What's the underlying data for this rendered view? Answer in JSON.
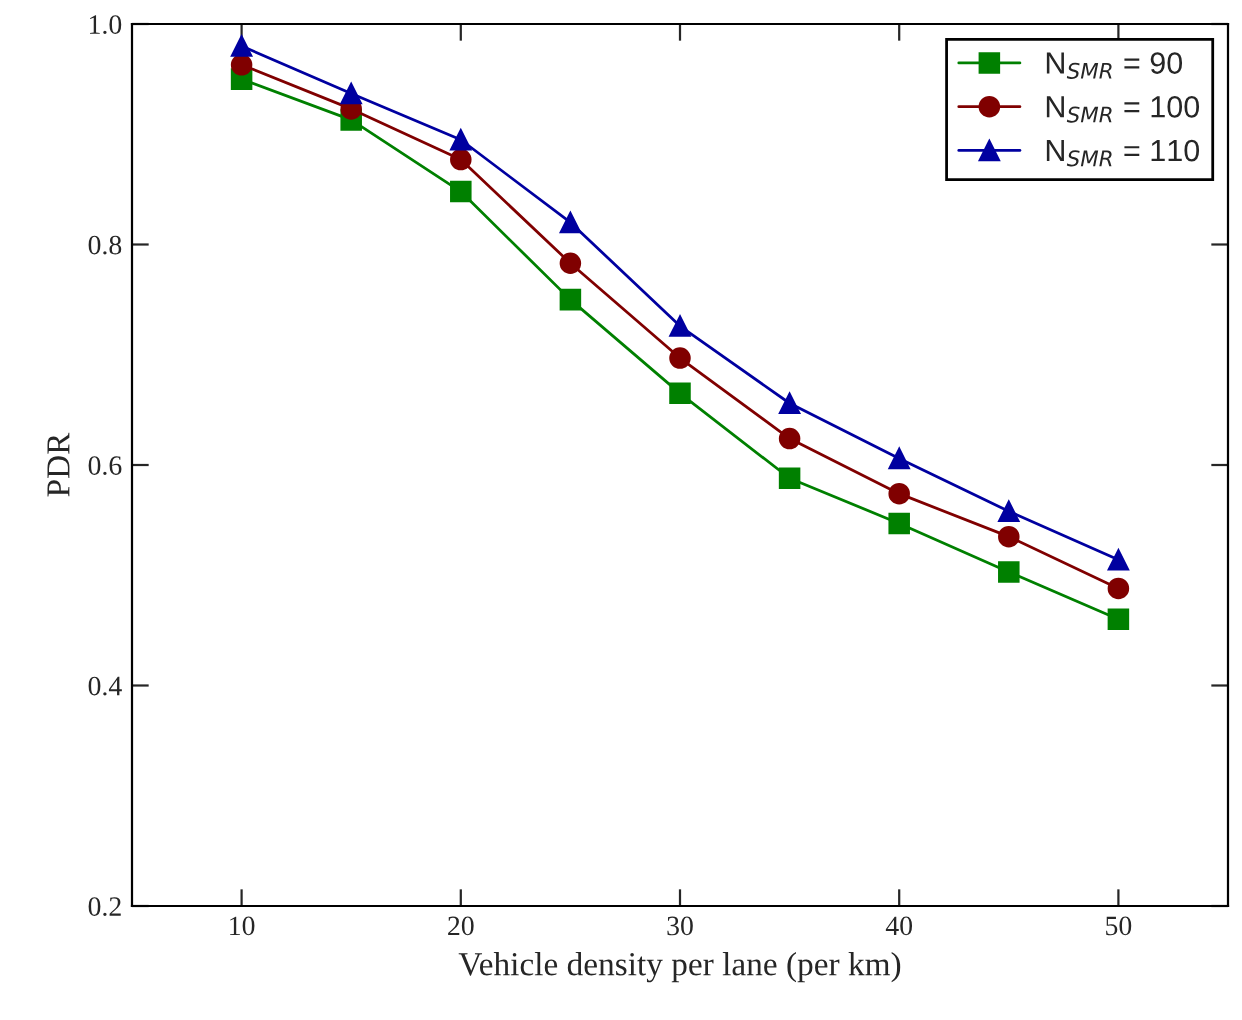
{
  "chart_data": {
    "type": "line",
    "xlabel": "Vehicle density per lane (per km)",
    "ylabel": "PDR",
    "x": [
      10,
      15,
      20,
      25,
      30,
      35,
      40,
      45,
      50
    ],
    "series": [
      {
        "name": "N$_{SMR}$ = 90",
        "color": "#008000",
        "marker": "square",
        "values": [
          0.95,
          0.913,
          0.848,
          0.75,
          0.665,
          0.588,
          0.547,
          0.503,
          0.46
        ]
      },
      {
        "name": "N$_{SMR}$ = 100",
        "color": "#800000",
        "marker": "circle",
        "values": [
          0.963,
          0.923,
          0.877,
          0.783,
          0.697,
          0.624,
          0.574,
          0.535,
          0.488
        ]
      },
      {
        "name": "N$_{SMR}$ = 110",
        "color": "#0000a0",
        "marker": "triangle",
        "values": [
          0.98,
          0.937,
          0.895,
          0.82,
          0.726,
          0.656,
          0.606,
          0.558,
          0.514
        ]
      }
    ],
    "xlim": [
      5,
      55
    ],
    "xticks": [
      10,
      20,
      30,
      40,
      50
    ],
    "ylim": [
      0.2,
      1.0
    ],
    "yticks": [
      0.2,
      0.4,
      0.6,
      0.8,
      {
        "value": 1.0,
        "label": "1.0"
      }
    ],
    "grid": false,
    "legend": "top right",
    "line_style": "solid"
  }
}
